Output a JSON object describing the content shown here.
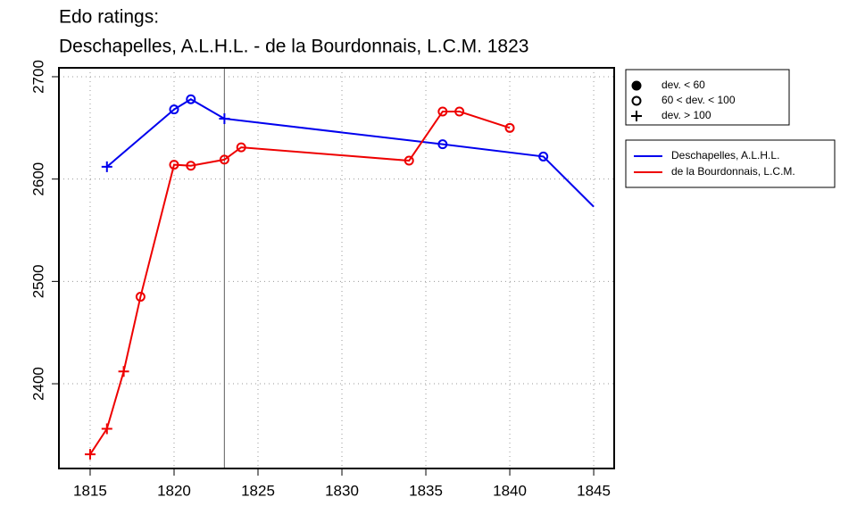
{
  "chart_data": {
    "type": "line",
    "title": [
      "Edo ratings:",
      "Deschapelles, A.L.H.L. - de la Bourdonnais, L.C.M. 1823"
    ],
    "xlim": [
      1813.14,
      1846.22
    ],
    "ylim": [
      2317.2,
      2708.7
    ],
    "xticks": [
      1815,
      1820,
      1825,
      1830,
      1835,
      1840,
      1845
    ],
    "yticks": [
      2400,
      2500,
      2600,
      2700
    ],
    "grid": true,
    "vline": 1823,
    "marker_legend": [
      "dev. < 60",
      "60 < dev. < 100",
      "dev. > 100"
    ],
    "series": [
      {
        "name": "Deschapelles, A.L.H.L.",
        "color": "#0000ee",
        "x": [
          1816,
          1820,
          1821,
          1823,
          1836,
          1842,
          1845
        ],
        "values": [
          2612,
          2668,
          2678,
          2659,
          2634,
          2622,
          2573
        ],
        "markers": [
          2,
          1,
          1,
          2,
          1,
          1,
          null
        ]
      },
      {
        "name": "de la Bourdonnais, L.C.M.",
        "color": "#ee0000",
        "x": [
          1815,
          1816,
          1817,
          1818,
          1820,
          1821,
          1823,
          1824,
          1834,
          1836,
          1837,
          1840
        ],
        "values": [
          2331,
          2356,
          2412,
          2485,
          2614,
          2613,
          2619,
          2631,
          2618,
          2666,
          2666,
          2650
        ],
        "markers": [
          2,
          2,
          2,
          1,
          1,
          1,
          1,
          1,
          1,
          1,
          1,
          1
        ]
      }
    ]
  }
}
